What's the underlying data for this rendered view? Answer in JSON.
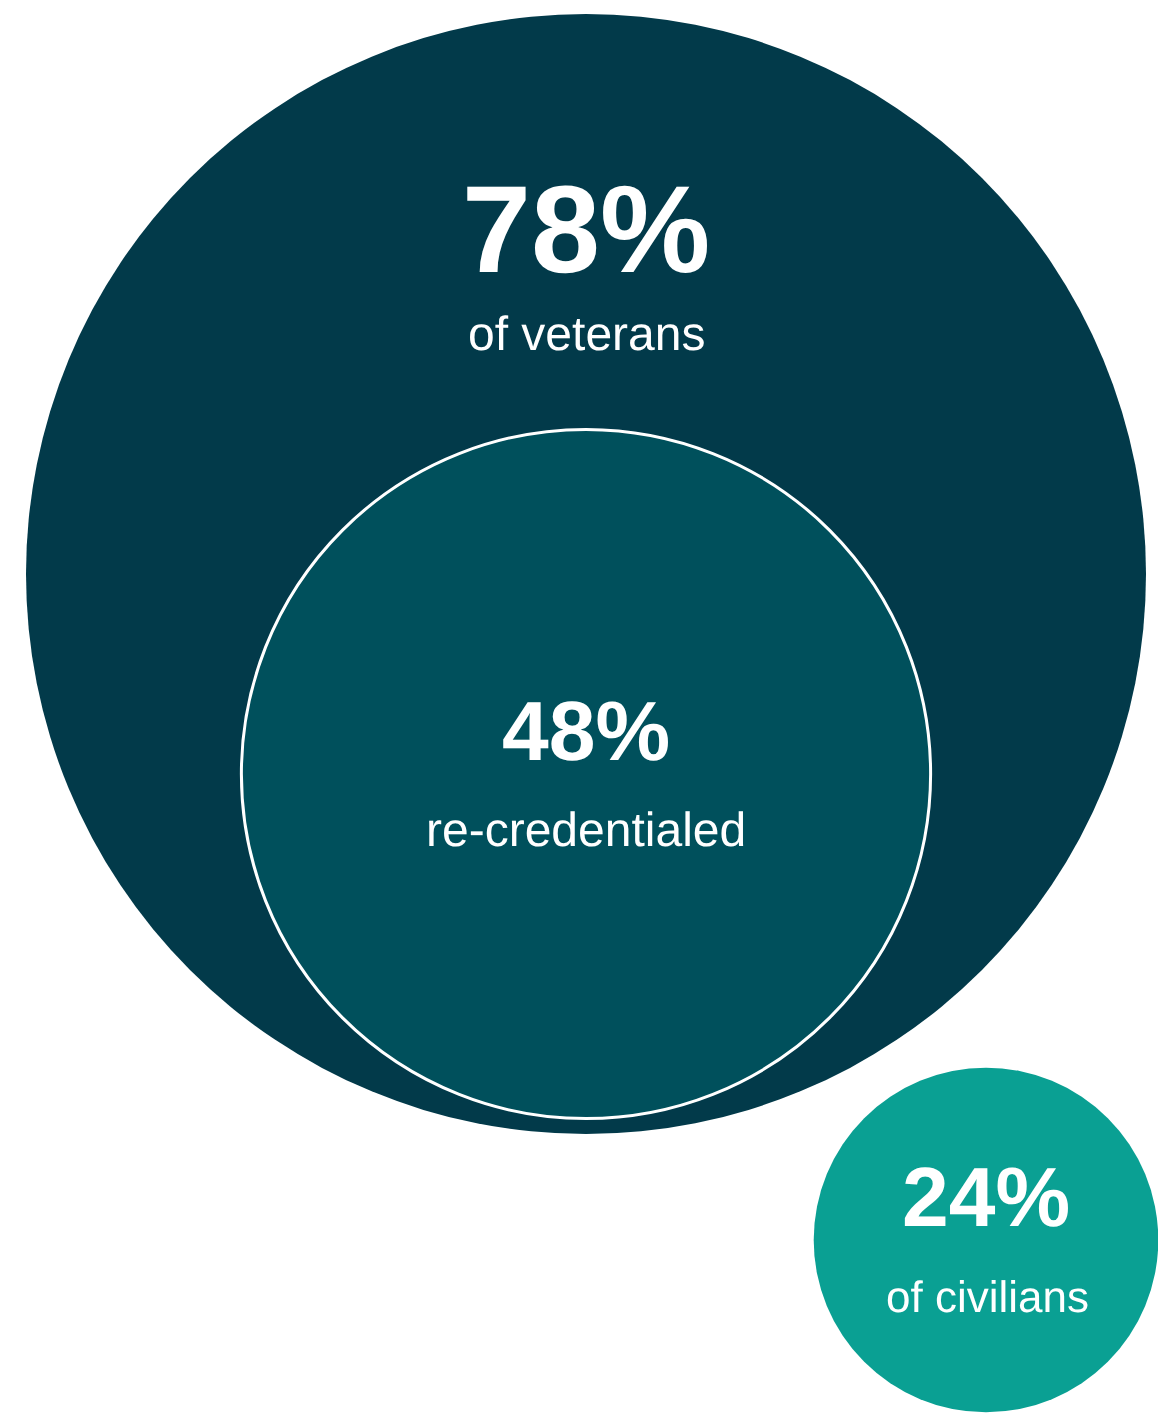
{
  "chart_data": {
    "type": "other",
    "categories": [
      "of veterans",
      "re-credentialed",
      "of civilians"
    ],
    "values": [
      78,
      48,
      24
    ],
    "value_labels": [
      "78%",
      "48%",
      "24%"
    ],
    "colors": [
      "#023a4a",
      "#00505c",
      "#0aa093"
    ]
  }
}
